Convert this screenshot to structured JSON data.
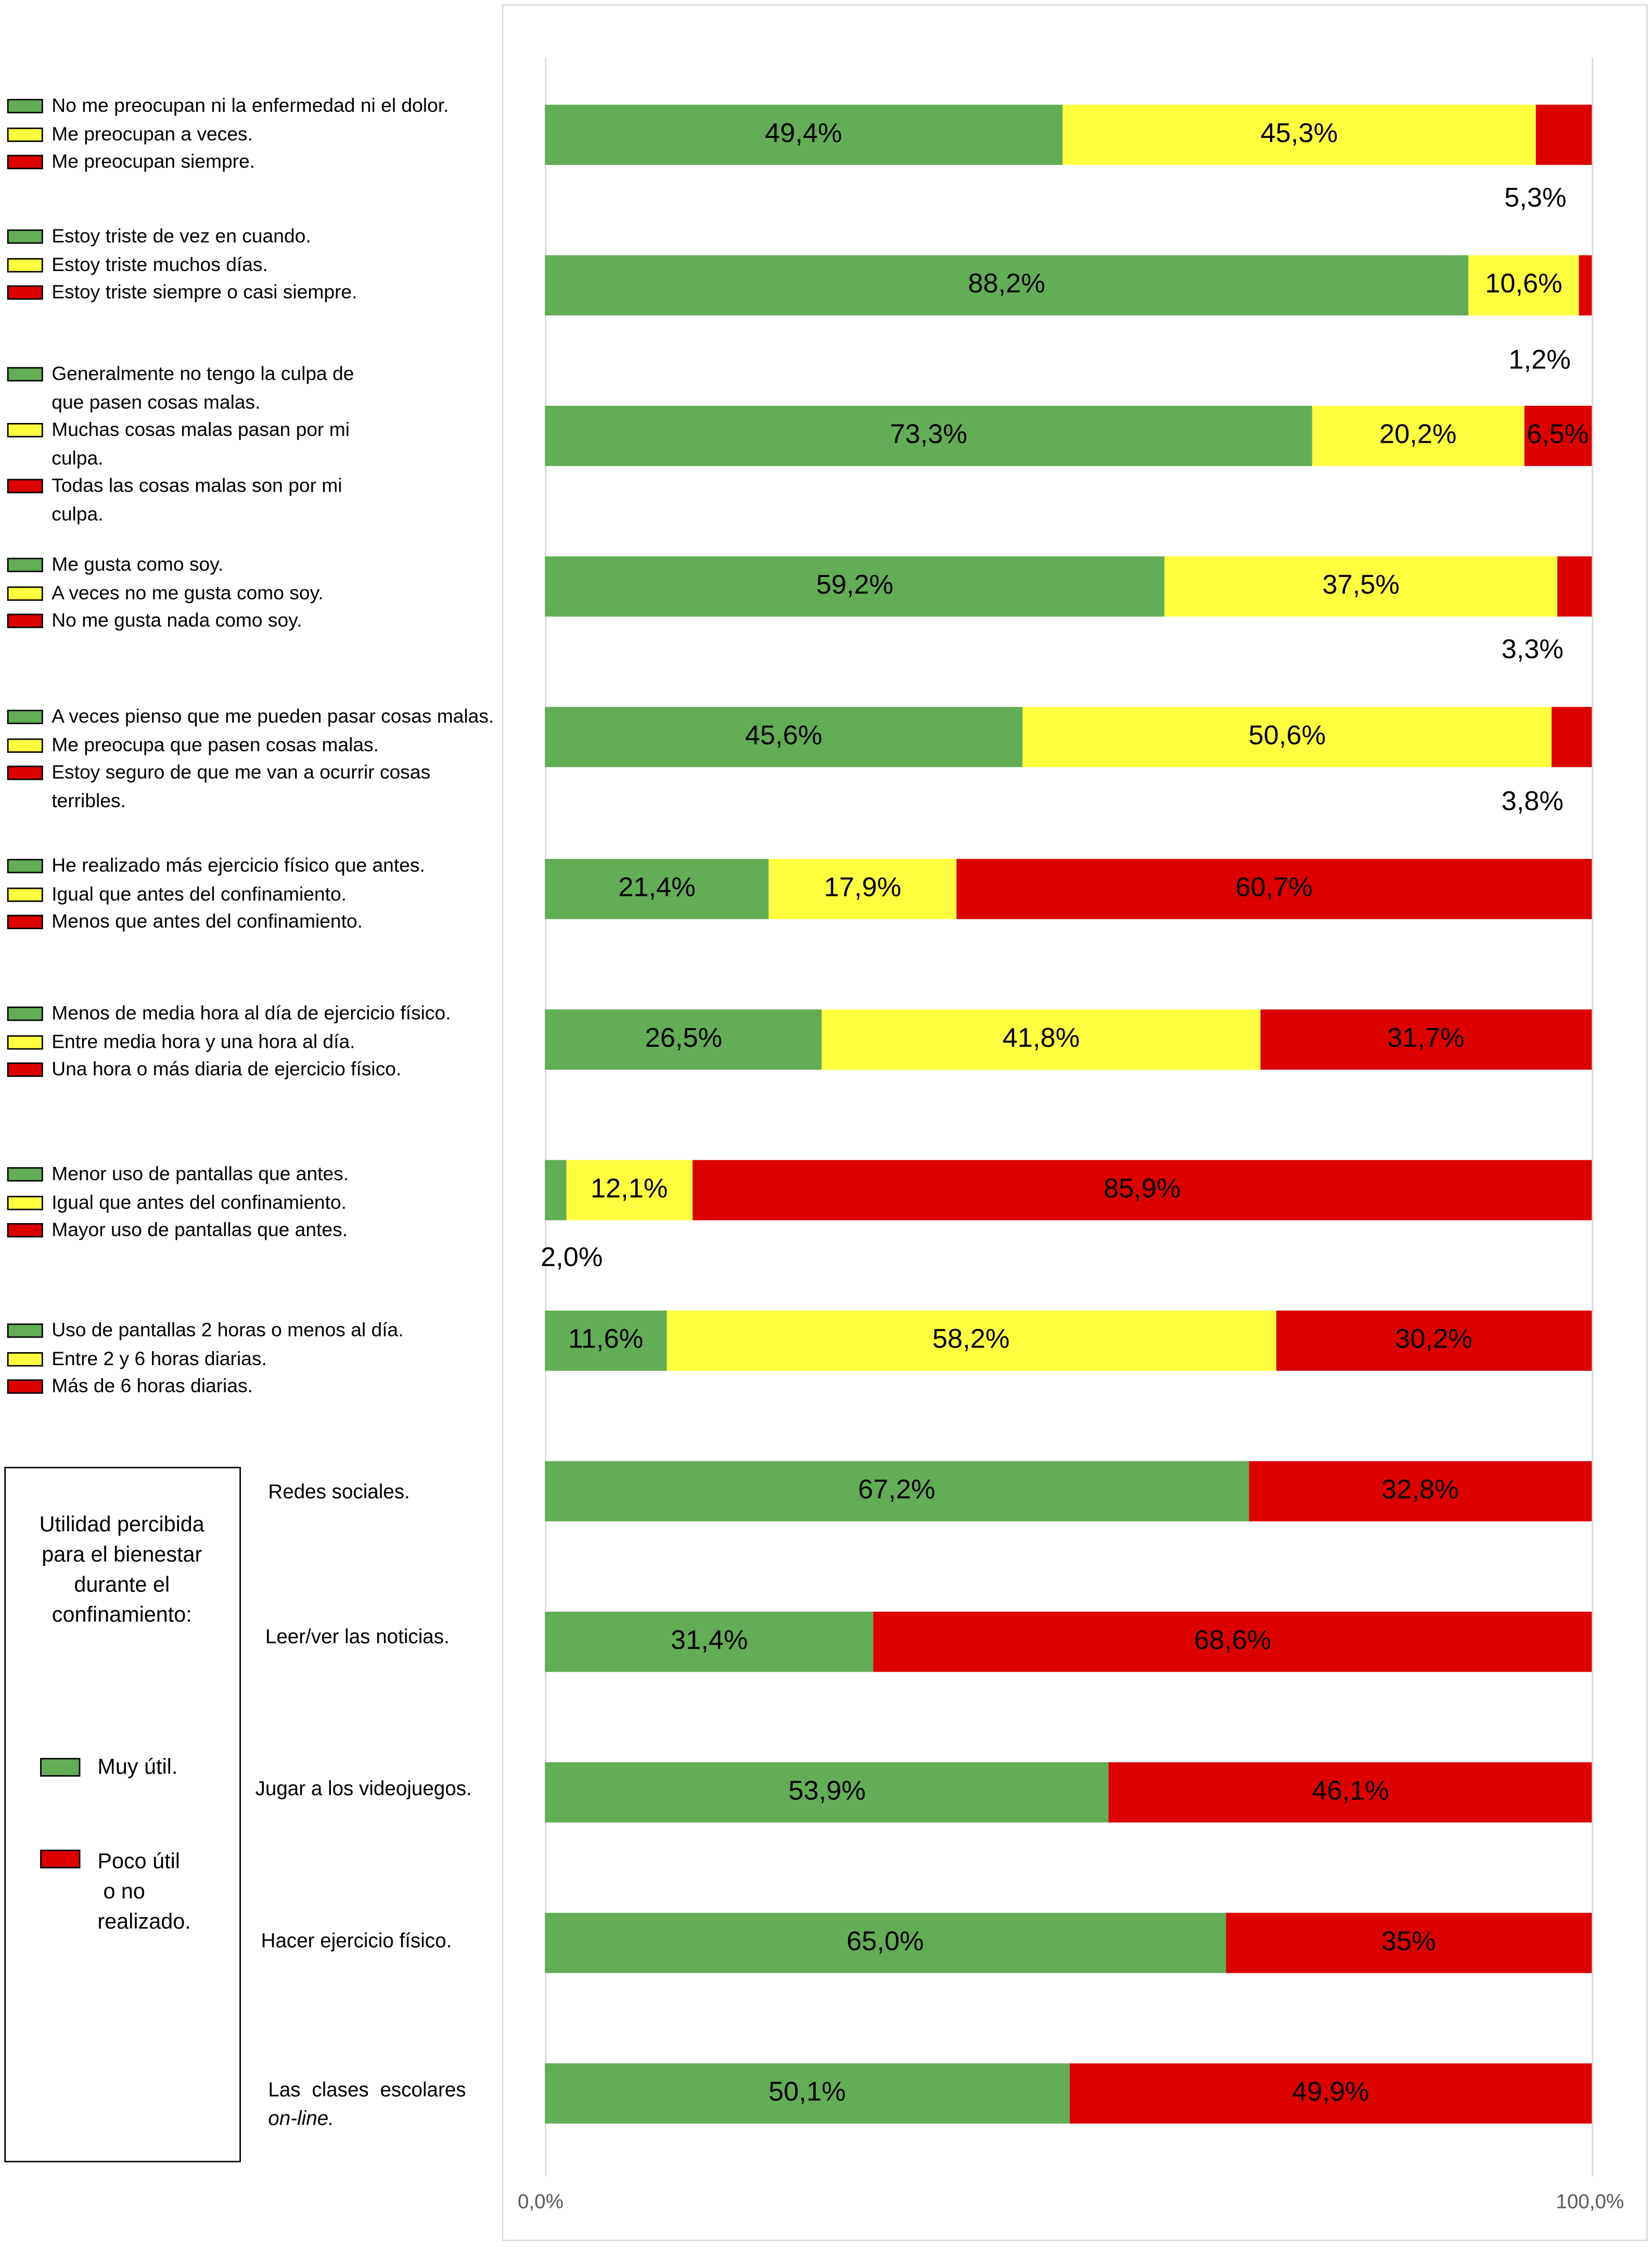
{
  "colors": {
    "green": "#62AD56",
    "yellow": "#FFFF40",
    "red": "#DD0000"
  },
  "legend_groups": [
    {
      "items": [
        [
          "No me preocupan ni la enfermedad ni el dolor."
        ],
        [
          "Me preocupan a veces."
        ],
        [
          "Me preocupan siempre."
        ]
      ]
    },
    {
      "items": [
        [
          "Estoy triste de vez en cuando."
        ],
        [
          "Estoy triste muchos días."
        ],
        [
          "Estoy triste siempre o casi siempre."
        ]
      ]
    },
    {
      "items": [
        [
          "Generalmente no tengo la culpa de",
          "que pasen cosas malas."
        ],
        [
          "Muchas cosas malas pasan por mi",
          "culpa."
        ],
        [
          "Todas las cosas malas son por mi",
          "culpa."
        ]
      ]
    },
    {
      "items": [
        [
          "Me gusta como soy."
        ],
        [
          "A veces no me gusta como soy."
        ],
        [
          "No me gusta nada como soy."
        ]
      ]
    },
    {
      "items": [
        [
          "A veces pienso que me pueden pasar cosas malas."
        ],
        [
          "Me preocupa que pasen cosas malas."
        ],
        [
          "Estoy seguro de que me van a ocurrir cosas",
          "terribles."
        ]
      ]
    },
    {
      "items": [
        [
          "He realizado más ejercicio físico que antes."
        ],
        [
          "Igual que antes del confinamiento."
        ],
        [
          "Menos que antes del confinamiento."
        ]
      ]
    },
    {
      "items": [
        [
          "Menos de media hora al día de ejercicio físico."
        ],
        [
          "Entre media hora y una hora al día."
        ],
        [
          "Una hora o más diaria de ejercicio físico."
        ]
      ]
    },
    {
      "items": [
        [
          "Menor uso de pantallas que antes."
        ],
        [
          "Igual que antes del confinamiento."
        ],
        [
          "Mayor uso de pantallas que antes."
        ]
      ]
    },
    {
      "items": [
        [
          "Uso de pantallas 2 horas o menos al día."
        ],
        [
          "Entre 2 y 6 horas diarias."
        ],
        [
          "Más de 6 horas diarias."
        ]
      ]
    }
  ],
  "utility_box": {
    "title_lines": [
      "Utilidad percibida",
      "para el bienestar",
      "durante el",
      "confinamiento:"
    ],
    "green_label": "Muy útil.",
    "red_label_lines": [
      "Poco útil",
      "o no",
      "realizado."
    ]
  },
  "activities": [
    [
      "Redes sociales."
    ],
    [
      "Leer/ver las noticias."
    ],
    [
      "Jugar a los videojuegos."
    ],
    [
      "Hacer ejercicio físico."
    ],
    [
      "Las  clases  escolares",
      "on-line."
    ]
  ],
  "chart_data": {
    "type": "bar",
    "orientation": "horizontal-stacked-100",
    "xlim": [
      0,
      100
    ],
    "x_tick_labels": [
      "0,0%",
      "100,0%"
    ],
    "rows": [
      {
        "values": [
          49.4,
          45.3,
          5.3
        ],
        "labels": [
          "49,4%",
          "45,3%",
          "5,3%"
        ],
        "outside": 2
      },
      {
        "values": [
          88.2,
          10.6,
          1.2
        ],
        "labels": [
          "88,2%",
          "10,6%",
          "1,2%"
        ],
        "outside": 2
      },
      {
        "values": [
          73.3,
          20.2,
          6.5
        ],
        "labels": [
          "73,3%",
          "20,2%",
          "6,5%"
        ]
      },
      {
        "values": [
          59.2,
          37.5,
          3.3
        ],
        "labels": [
          "59,2%",
          "37,5%",
          "3,3%"
        ],
        "outside": 2
      },
      {
        "values": [
          45.6,
          50.6,
          3.8
        ],
        "labels": [
          "45,6%",
          "50,6%",
          "3,8%"
        ],
        "outside": 2
      },
      {
        "values": [
          21.4,
          17.9,
          60.7
        ],
        "labels": [
          "21,4%",
          "17,9%",
          "60,7%"
        ]
      },
      {
        "values": [
          26.5,
          41.8,
          31.7
        ],
        "labels": [
          "26,5%",
          "41,8%",
          "31,7%"
        ]
      },
      {
        "values": [
          2.0,
          12.1,
          85.9
        ],
        "labels": [
          "2,0%",
          "12,1%",
          "85,9%"
        ],
        "outside": 0
      },
      {
        "values": [
          11.6,
          58.2,
          30.2
        ],
        "labels": [
          "11,6%",
          "58,2%",
          "30,2%"
        ]
      },
      {
        "values": [
          67.2,
          32.8
        ],
        "labels": [
          "67,2%",
          "32,8%"
        ]
      },
      {
        "values": [
          31.4,
          68.6
        ],
        "labels": [
          "31,4%",
          "68,6%"
        ]
      },
      {
        "values": [
          53.9,
          46.1
        ],
        "labels": [
          "53,9%",
          "46,1%"
        ]
      },
      {
        "values": [
          65.0,
          35.0
        ],
        "labels": [
          "65,0%",
          "35%"
        ]
      },
      {
        "values": [
          50.1,
          49.9
        ],
        "labels": [
          "50,1%",
          "49,9%"
        ]
      }
    ]
  }
}
